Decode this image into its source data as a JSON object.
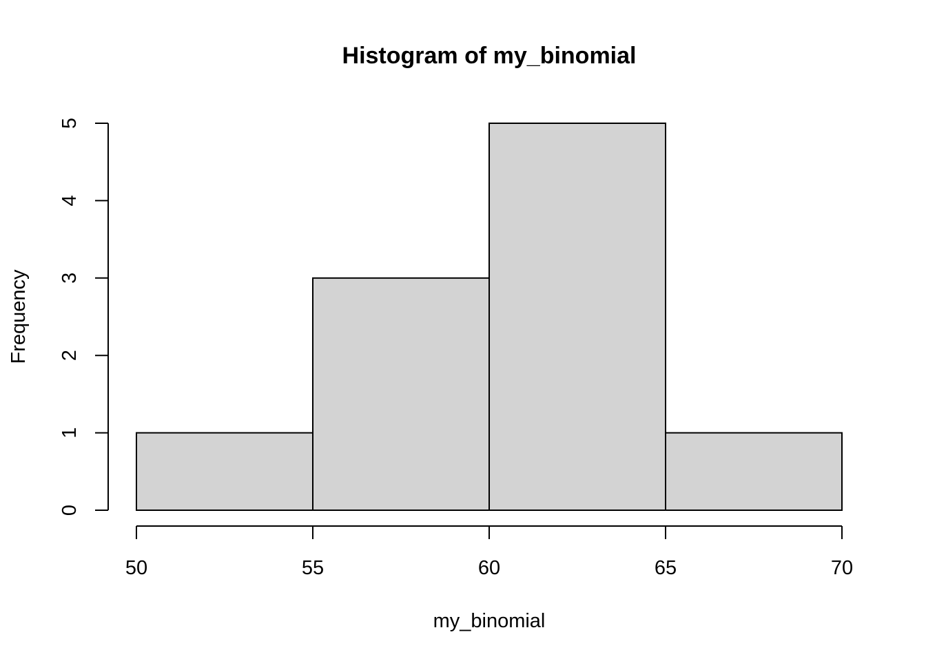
{
  "chart_data": {
    "type": "bar",
    "title": "Histogram of my_binomial",
    "xlabel": "my_binomial",
    "ylabel": "Frequency",
    "bins": [
      {
        "start": 50,
        "end": 55,
        "count": 1
      },
      {
        "start": 55,
        "end": 60,
        "count": 3
      },
      {
        "start": 60,
        "end": 65,
        "count": 5
      },
      {
        "start": 65,
        "end": 70,
        "count": 1
      }
    ],
    "xlim": [
      50,
      70
    ],
    "ylim": [
      0,
      5
    ],
    "x_ticks": [
      "50",
      "55",
      "60",
      "65",
      "70"
    ],
    "y_ticks": [
      "0",
      "1",
      "2",
      "3",
      "4",
      "5"
    ],
    "grid": false,
    "legend": "none",
    "colors": {
      "bar_fill": "#d3d3d3",
      "bar_stroke": "#000000",
      "axis": "#000000"
    }
  }
}
